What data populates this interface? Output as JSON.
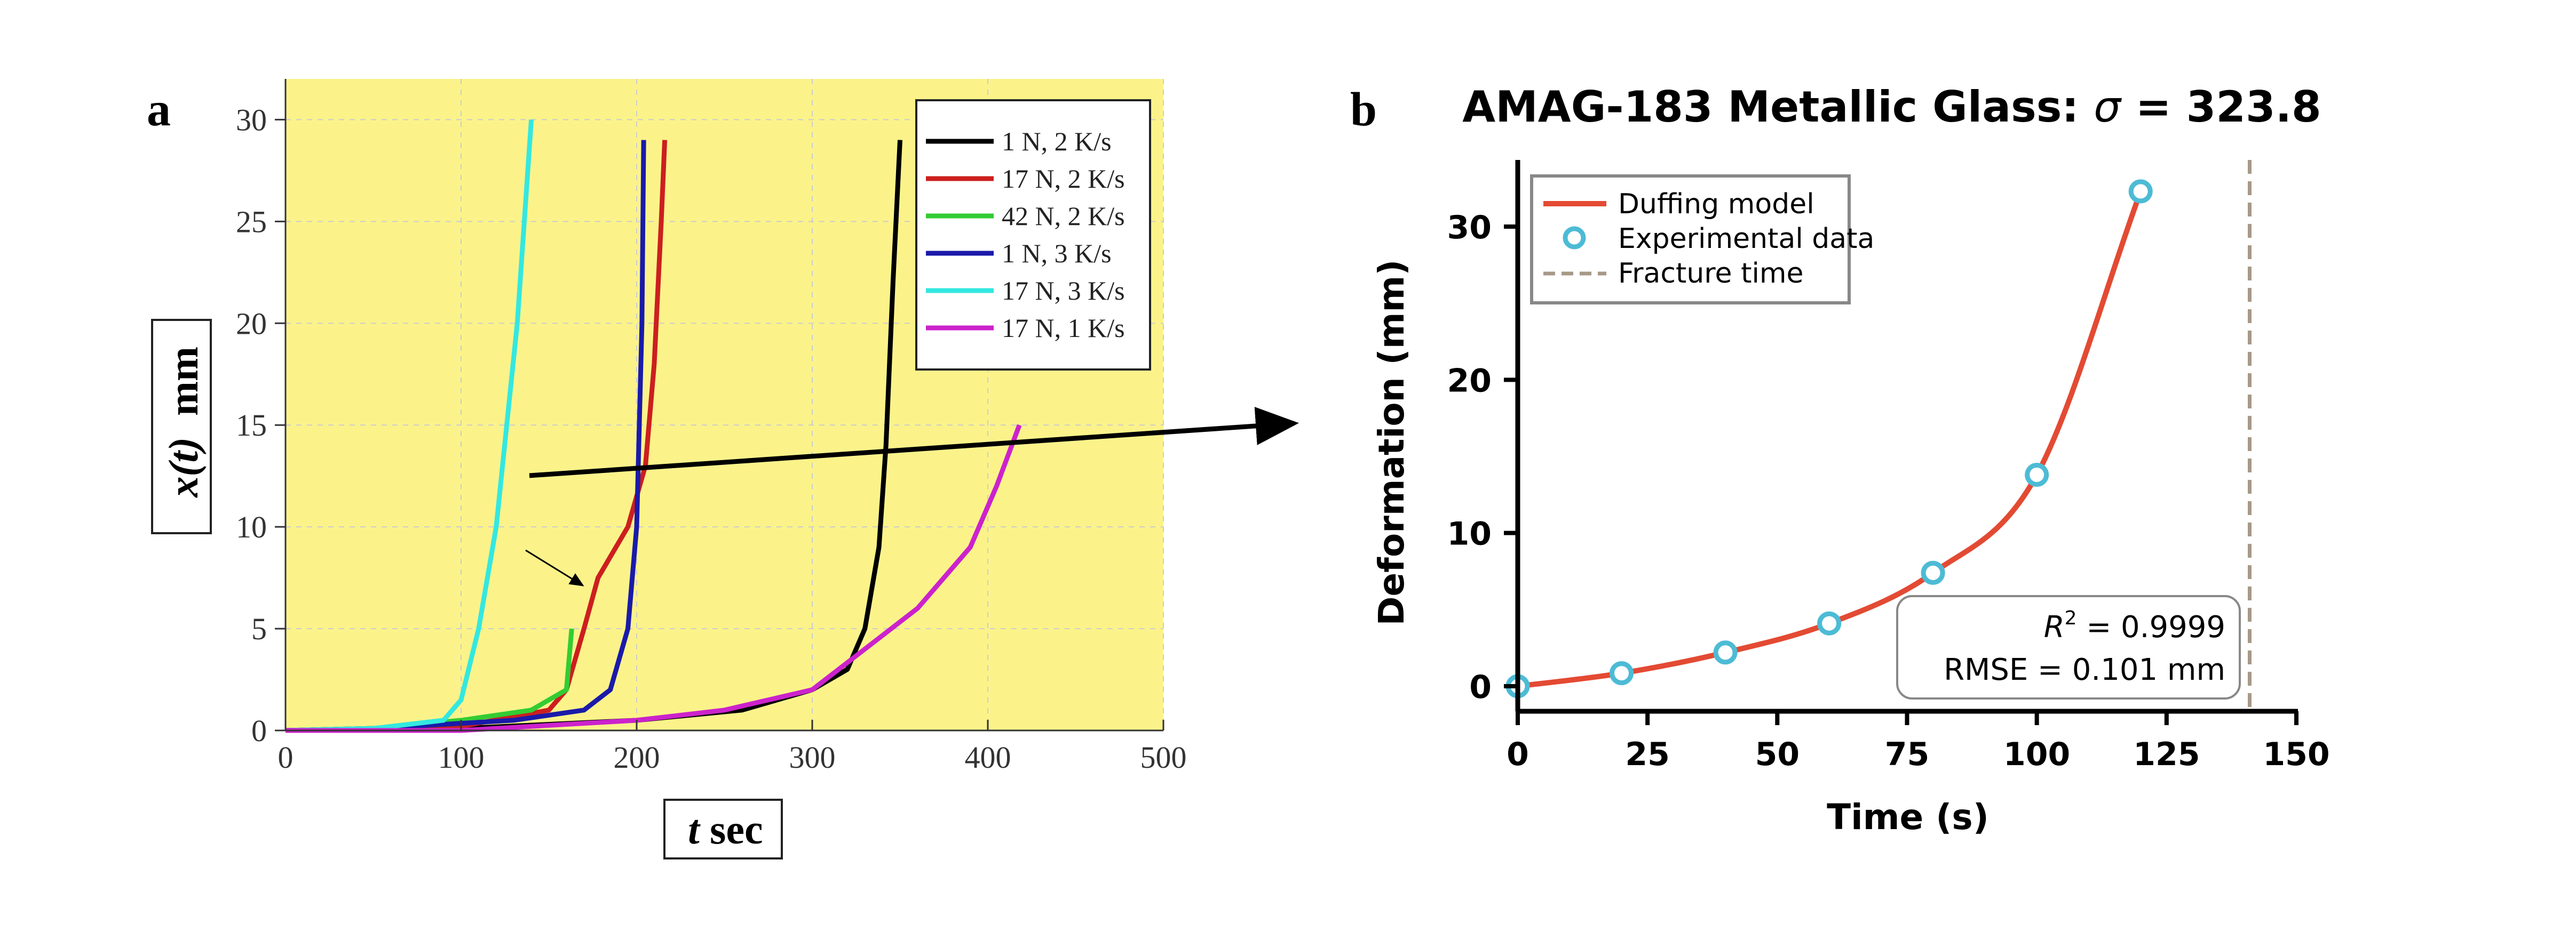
{
  "chart_data": [
    {
      "panel_label": "a",
      "type": "line",
      "xlabel_var": "t",
      "xlabel_unit": "sec",
      "ylabel_var": "x(t)",
      "ylabel_unit": "mm",
      "xlim": [
        0,
        500
      ],
      "ylim": [
        0,
        32
      ],
      "xticks": [
        "0",
        "100",
        "200",
        "300",
        "400",
        "500"
      ],
      "yticks": [
        "0",
        "5",
        "10",
        "15",
        "20",
        "25",
        "30"
      ],
      "grid": true,
      "background": "#fbf38a",
      "legend_position": "top-right",
      "series": [
        {
          "name": "1 N, 2 K/s",
          "color": "#000000",
          "x": [
            0,
            100,
            200,
            260,
            300,
            320,
            330,
            338,
            342,
            346,
            350
          ],
          "y": [
            0,
            0.1,
            0.5,
            1,
            2,
            3,
            5,
            9,
            14,
            22,
            29
          ]
        },
        {
          "name": "17 N, 2 K/s",
          "color": "#cc1f1f",
          "x": [
            0,
            100,
            150,
            160,
            170,
            178,
            195,
            205,
            210,
            214,
            216
          ],
          "y": [
            0,
            0.2,
            1,
            2,
            5,
            7.5,
            10,
            13,
            18,
            25,
            29
          ]
        },
        {
          "name": "42 N, 2 K/s",
          "color": "#33cc33",
          "x": [
            0,
            50,
            100,
            140,
            160,
            163
          ],
          "y": [
            0,
            0.1,
            0.5,
            1,
            2,
            5
          ]
        },
        {
          "name": "1 N, 3 K/s",
          "color": "#1a1aaa",
          "x": [
            0,
            50,
            130,
            170,
            185,
            195,
            200,
            203,
            204
          ],
          "y": [
            0,
            0.1,
            0.5,
            1,
            2,
            5,
            10,
            20,
            29
          ]
        },
        {
          "name": "17 N, 3 K/s",
          "color": "#33e8e0",
          "x": [
            0,
            50,
            90,
            100,
            110,
            120,
            132,
            140
          ],
          "y": [
            0,
            0.1,
            0.5,
            1.5,
            5,
            10,
            20,
            30
          ]
        },
        {
          "name": "17 N, 1 K/s",
          "color": "#cc22cc",
          "x": [
            0,
            100,
            200,
            250,
            300,
            330,
            360,
            390,
            405,
            418
          ],
          "y": [
            0,
            0,
            0.5,
            1,
            2,
            4,
            6,
            9,
            12,
            15
          ]
        }
      ]
    },
    {
      "panel_label": "b",
      "type": "line",
      "title_prefix": "AMAG-183 Metallic Glass: ",
      "title_symbol": "σ",
      "title_suffix": " = 323.8",
      "xlabel": "Time (s)",
      "ylabel": "Deformation (mm)",
      "xlim": [
        0,
        150
      ],
      "ylim": [
        -1.5,
        34
      ],
      "xticks": [
        "0",
        "25",
        "50",
        "75",
        "100",
        "125",
        "150"
      ],
      "yticks": [
        "0",
        "10",
        "20",
        "30"
      ],
      "grid": false,
      "legend_position": "top-left",
      "legend": [
        "Duffing model",
        "Experimental data",
        "Fracture time"
      ],
      "model_color": "#e34a33",
      "data_color": "#4dbbd5",
      "fracture_color": "#a89888",
      "experimental": {
        "x": [
          0,
          20,
          40,
          60,
          80,
          100,
          120
        ],
        "y": [
          0,
          0.85,
          2.2,
          4.1,
          7.4,
          13.8,
          32.3
        ]
      },
      "fracture_time": 141,
      "stats": {
        "r2_label": "R",
        "r2_sup": "2",
        "r2_value": " = 0.9999",
        "rmse": "RMSE = 0.101 mm"
      }
    }
  ]
}
